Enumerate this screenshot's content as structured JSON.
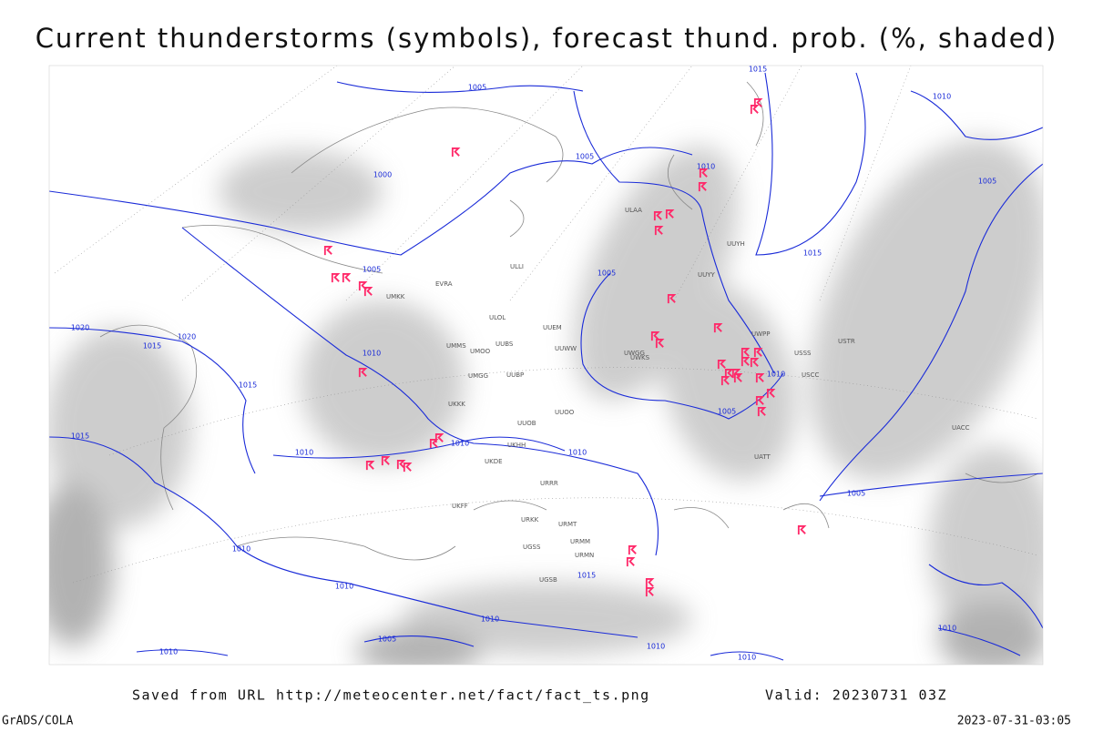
{
  "title": "Current thunderstorms (symbols), forecast thund. prob. (%, shaded)",
  "footer": {
    "source": "Saved from URL http://meteocenter.net/fact/fact_ts.png",
    "valid": "Valid: 20230731 03Z",
    "software": "GrADS/COLA",
    "timestamp": "2023-07-31-03:05"
  },
  "isobar_labels": [
    "1015",
    "1005",
    "1010",
    "1000",
    "1005",
    "1010",
    "1005",
    "1015",
    "1005",
    "1005",
    "1020",
    "1020",
    "1015",
    "1010",
    "1015",
    "1010",
    "1005",
    "1015",
    "1010",
    "1010",
    "1010",
    "1005",
    "1010",
    "1015",
    "1010",
    "1010",
    "1005",
    "1010",
    "1010",
    "1010",
    "1010"
  ],
  "stations": [
    "ULOL",
    "UUEM",
    "UUWW",
    "UMMS",
    "UMOO",
    "UUBS",
    "UMGG",
    "UUBP",
    "UKKK",
    "UUOB",
    "UUOO",
    "UKHH",
    "UKDE",
    "URRR",
    "UKFF",
    "URKK",
    "URMT",
    "URMM",
    "URMN",
    "UGSS",
    "UGSB",
    "USSS",
    "USCC",
    "UWPP",
    "UWKS",
    "UWGG",
    "UUYH",
    "UUYY",
    "ULLI",
    "ULAA",
    "EVRA",
    "UMKK",
    "USTR",
    "UACC",
    "UATT"
  ]
}
